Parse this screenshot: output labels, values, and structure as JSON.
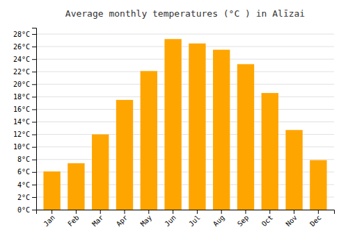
{
  "chart_data": {
    "type": "bar",
    "title": "Average monthly temperatures (°C ) in Alīzai",
    "categories": [
      "Jan",
      "Feb",
      "Mar",
      "Apr",
      "May",
      "Jun",
      "Jul",
      "Aug",
      "Sep",
      "Oct",
      "Nov",
      "Dec"
    ],
    "values": [
      6.1,
      7.4,
      12.0,
      17.5,
      22.1,
      27.2,
      26.5,
      25.5,
      23.2,
      18.6,
      12.7,
      7.9
    ],
    "color": "#FFA500",
    "ylim": [
      0,
      29
    ],
    "yticks": [
      {
        "value": 0,
        "label": "0°C"
      },
      {
        "value": 2,
        "label": "2°C"
      },
      {
        "value": 4,
        "label": "4°C"
      },
      {
        "value": 6,
        "label": "6°C"
      },
      {
        "value": 8,
        "label": "8°C"
      },
      {
        "value": 10,
        "label": "10°C"
      },
      {
        "value": 12,
        "label": "12°C"
      },
      {
        "value": 14,
        "label": "14°C"
      },
      {
        "value": 16,
        "label": "16°C"
      },
      {
        "value": 18,
        "label": "18°C"
      },
      {
        "value": 20,
        "label": "20°C"
      },
      {
        "value": 22,
        "label": "22°C"
      },
      {
        "value": 24,
        "label": "24°C"
      },
      {
        "value": 26,
        "label": "26°C"
      },
      {
        "value": 28,
        "label": "28°C"
      }
    ],
    "grid": true
  }
}
